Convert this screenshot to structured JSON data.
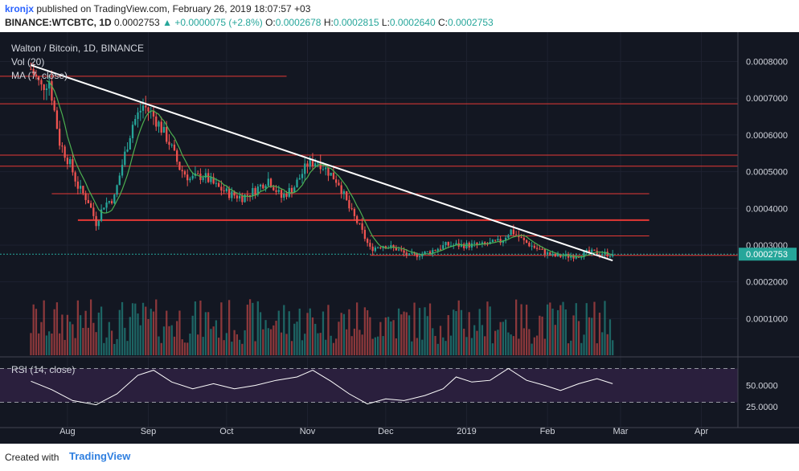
{
  "header": {
    "author": "kronjx",
    "published_text": "published on TradingView.com, February 26, 2019 18:07:57 +03",
    "symbol": "BINANCE:WTCBTC, 1D",
    "last": "0.0002753",
    "change_arrow": "▲",
    "change": "+0.0000075 (+2.8%)",
    "o_label": "O:",
    "o": "0.0002678",
    "h_label": "H:",
    "h": "0.0002815",
    "l_label": "L:",
    "l": "0.0002640",
    "c_label": "C:",
    "c": "0.0002753"
  },
  "legend": {
    "title": "Walton / Bitcoin, 1D, BINANCE",
    "vol": "Vol (20)",
    "ma": "MA (7, close)",
    "rsi": "RSI (14, close)"
  },
  "footer": {
    "created_with": "Created with",
    "brand": "TradingView"
  },
  "colors": {
    "background": "#131722",
    "up": "#26a69a",
    "down": "#ef5350",
    "ma": "#4caf50",
    "trendline": "#ffffff",
    "level": "#e53935",
    "rsi_band": "#2a1f3d",
    "last_price": "#26a69a"
  },
  "chart_data": [
    {
      "type": "candlestick",
      "title": "Walton / Bitcoin, 1D, BINANCE",
      "x_tick_labels": [
        "Aug",
        "Sep",
        "Oct",
        "Nov",
        "Dec",
        "2019",
        "Feb",
        "Mar",
        "Apr"
      ],
      "y_tick_labels": [
        "0.0008000",
        "0.0007000",
        "0.0006000",
        "0.0005000",
        "0.0004000",
        "0.0003000",
        "0.0002000",
        "0.0001000"
      ],
      "ylim": [
        0.0,
        0.00088
      ],
      "last_price_label": "0.0002753",
      "close_path": [
        {
          "x": "2018-07-18",
          "y": 0.00078
        },
        {
          "x": "2018-07-22",
          "y": 0.00073
        },
        {
          "x": "2018-07-25",
          "y": 0.00075
        },
        {
          "x": "2018-07-29",
          "y": 0.00058
        },
        {
          "x": "2018-08-02",
          "y": 0.00052
        },
        {
          "x": "2018-08-05",
          "y": 0.00046
        },
        {
          "x": "2018-08-09",
          "y": 0.00042
        },
        {
          "x": "2018-08-12",
          "y": 0.00036
        },
        {
          "x": "2018-08-15",
          "y": 0.00041
        },
        {
          "x": "2018-08-19",
          "y": 0.00043
        },
        {
          "x": "2018-08-22",
          "y": 0.00052
        },
        {
          "x": "2018-08-26",
          "y": 0.00063
        },
        {
          "x": "2018-08-30",
          "y": 0.00068
        },
        {
          "x": "2018-09-02",
          "y": 0.00066
        },
        {
          "x": "2018-09-05",
          "y": 0.00063
        },
        {
          "x": "2018-09-09",
          "y": 0.00058
        },
        {
          "x": "2018-09-13",
          "y": 0.00051
        },
        {
          "x": "2018-09-17",
          "y": 0.00048
        },
        {
          "x": "2018-09-22",
          "y": 0.00049
        },
        {
          "x": "2018-09-27",
          "y": 0.00046
        },
        {
          "x": "2018-10-02",
          "y": 0.00044
        },
        {
          "x": "2018-10-07",
          "y": 0.00043
        },
        {
          "x": "2018-10-12",
          "y": 0.00045
        },
        {
          "x": "2018-10-17",
          "y": 0.00048
        },
        {
          "x": "2018-10-22",
          "y": 0.00043
        },
        {
          "x": "2018-10-27",
          "y": 0.00046
        },
        {
          "x": "2018-11-01",
          "y": 0.00052
        },
        {
          "x": "2018-11-05",
          "y": 0.00053
        },
        {
          "x": "2018-11-09",
          "y": 0.0005
        },
        {
          "x": "2018-11-13",
          "y": 0.00047
        },
        {
          "x": "2018-11-17",
          "y": 0.0004
        },
        {
          "x": "2018-11-21",
          "y": 0.00035
        },
        {
          "x": "2018-11-25",
          "y": 0.00029
        },
        {
          "x": "2018-11-30",
          "y": 0.0003
        },
        {
          "x": "2018-12-05",
          "y": 0.00029
        },
        {
          "x": "2018-12-10",
          "y": 0.00027
        },
        {
          "x": "2018-12-17",
          "y": 0.00028
        },
        {
          "x": "2018-12-24",
          "y": 0.0003
        },
        {
          "x": "2018-12-31",
          "y": 0.0003
        },
        {
          "x": "2019-01-07",
          "y": 0.0003
        },
        {
          "x": "2019-01-14",
          "y": 0.00031
        },
        {
          "x": "2019-01-18",
          "y": 0.00034
        },
        {
          "x": "2019-01-23",
          "y": 0.00031
        },
        {
          "x": "2019-01-28",
          "y": 0.00029
        },
        {
          "x": "2019-02-03",
          "y": 0.00027
        },
        {
          "x": "2019-02-10",
          "y": 0.00027
        },
        {
          "x": "2019-02-17",
          "y": 0.00028
        },
        {
          "x": "2019-02-26",
          "y": 0.0002753
        }
      ],
      "horizontal_levels": [
        0.00076,
        0.000685,
        0.000545,
        0.000515,
        0.00044,
        0.000368,
        0.000325,
        0.000272
      ],
      "trendline": {
        "from": {
          "x": "2018-07-18",
          "y": 0.00079
        },
        "to": {
          "x": "2019-02-26",
          "y": 0.000258
        }
      }
    },
    {
      "type": "bar",
      "title": "Vol (20)",
      "description": "daily volume bars, colored by candle direction"
    },
    {
      "type": "line",
      "title": "RSI (14, close)",
      "y_tick_labels": [
        "50.0000",
        "25.0000"
      ],
      "band": [
        30,
        70
      ],
      "values": [
        {
          "x": "2018-07-18",
          "y": 55
        },
        {
          "x": "2018-07-26",
          "y": 45
        },
        {
          "x": "2018-08-03",
          "y": 32
        },
        {
          "x": "2018-08-12",
          "y": 27
        },
        {
          "x": "2018-08-20",
          "y": 40
        },
        {
          "x": "2018-08-28",
          "y": 62
        },
        {
          "x": "2018-09-03",
          "y": 68
        },
        {
          "x": "2018-09-10",
          "y": 54
        },
        {
          "x": "2018-09-18",
          "y": 46
        },
        {
          "x": "2018-09-26",
          "y": 52
        },
        {
          "x": "2018-10-04",
          "y": 46
        },
        {
          "x": "2018-10-12",
          "y": 50
        },
        {
          "x": "2018-10-20",
          "y": 56
        },
        {
          "x": "2018-10-28",
          "y": 60
        },
        {
          "x": "2018-11-03",
          "y": 68
        },
        {
          "x": "2018-11-10",
          "y": 55
        },
        {
          "x": "2018-11-17",
          "y": 40
        },
        {
          "x": "2018-11-24",
          "y": 28
        },
        {
          "x": "2018-12-01",
          "y": 34
        },
        {
          "x": "2018-12-08",
          "y": 32
        },
        {
          "x": "2018-12-16",
          "y": 38
        },
        {
          "x": "2018-12-23",
          "y": 46
        },
        {
          "x": "2018-12-28",
          "y": 60
        },
        {
          "x": "2019-01-03",
          "y": 54
        },
        {
          "x": "2019-01-10",
          "y": 56
        },
        {
          "x": "2019-01-17",
          "y": 70
        },
        {
          "x": "2019-01-24",
          "y": 56
        },
        {
          "x": "2019-01-31",
          "y": 50
        },
        {
          "x": "2019-02-06",
          "y": 44
        },
        {
          "x": "2019-02-13",
          "y": 52
        },
        {
          "x": "2019-02-20",
          "y": 58
        },
        {
          "x": "2019-02-26",
          "y": 52
        }
      ]
    }
  ]
}
